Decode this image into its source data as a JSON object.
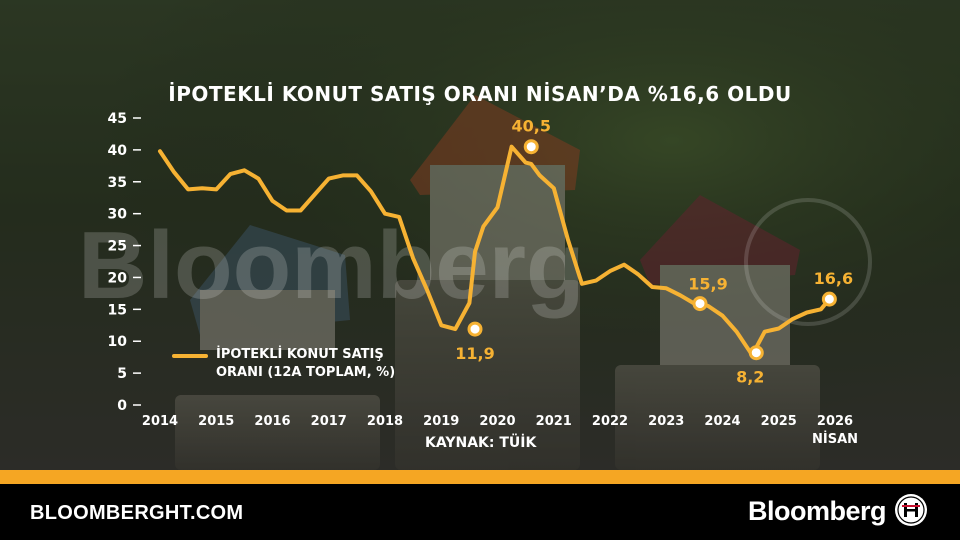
{
  "title": "İPOTEKLİ KONUT SATIŞ ORANI NİSAN’DA %16,6 OLDU",
  "source": "KAYNAK: TÜİK",
  "watermark": "Bloomberg",
  "footer": {
    "site": "BLOOMBERGHT.COM",
    "brand": "Bloomberg"
  },
  "colors": {
    "line": "#f6b233",
    "accent_band": "#f5a623",
    "footer_bg": "#000000",
    "text": "#ffffff"
  },
  "chart_data": {
    "type": "line",
    "title": "İPOTEKLİ KONUT SATIŞ ORANI NİSAN’DA %16,6 OLDU",
    "xlabel": "",
    "ylabel": "",
    "ylim": [
      0,
      45
    ],
    "y_ticks": [
      0,
      5,
      10,
      15,
      20,
      25,
      30,
      35,
      40,
      45
    ],
    "x_ticks": [
      "2014",
      "2015",
      "2016",
      "2017",
      "2018",
      "2019",
      "2020",
      "2021",
      "2022",
      "2023",
      "2024",
      "2025",
      "2026"
    ],
    "x_tick_sublabel": {
      "2026": "NİSAN"
    },
    "legend": "bottom-left",
    "grid": false,
    "series": [
      {
        "name": "İPOTEKLİ KONUT SATIŞ ORANI (12A TOPLAM, %)",
        "x": [
          2014.0,
          2014.25,
          2014.5,
          2014.75,
          2015.0,
          2015.25,
          2015.5,
          2015.75,
          2016.0,
          2016.25,
          2016.5,
          2016.75,
          2017.0,
          2017.25,
          2017.5,
          2017.75,
          2018.0,
          2018.25,
          2018.5,
          2018.75,
          2019.0,
          2019.25,
          2019.5,
          2019.6,
          2019.75,
          2020.0,
          2020.25,
          2020.5,
          2020.6,
          2020.75,
          2021.0,
          2021.25,
          2021.5,
          2021.75,
          2022.0,
          2022.25,
          2022.5,
          2022.75,
          2023.0,
          2023.25,
          2023.5,
          2023.6,
          2023.75,
          2024.0,
          2024.25,
          2024.5,
          2024.6,
          2024.75,
          2025.0,
          2025.25,
          2025.5,
          2025.75,
          2025.9
        ],
        "values": [
          39.8,
          36.5,
          33.8,
          34.0,
          33.8,
          36.2,
          36.8,
          35.5,
          32.0,
          30.5,
          30.5,
          33.0,
          35.5,
          36.0,
          36.0,
          33.5,
          30.0,
          29.5,
          23.0,
          18.0,
          12.5,
          11.9,
          16.0,
          24.0,
          28.0,
          31.0,
          40.5,
          38.0,
          37.8,
          36.0,
          34.0,
          26.0,
          19.0,
          19.5,
          21.0,
          22.0,
          20.5,
          18.5,
          18.3,
          17.2,
          15.9,
          16.0,
          15.5,
          14.0,
          11.5,
          8.2,
          9.0,
          11.5,
          12.0,
          13.5,
          14.5,
          15.0,
          16.6
        ]
      }
    ],
    "annotations": [
      {
        "x": 2019.6,
        "y": 11.9,
        "label": "11,9"
      },
      {
        "x": 2020.6,
        "y": 40.5,
        "label": "40,5"
      },
      {
        "x": 2023.6,
        "y": 15.9,
        "label": "15,9"
      },
      {
        "x": 2024.6,
        "y": 8.2,
        "label": "8,2"
      },
      {
        "x": 2025.9,
        "y": 16.6,
        "label": "16,6"
      }
    ]
  }
}
